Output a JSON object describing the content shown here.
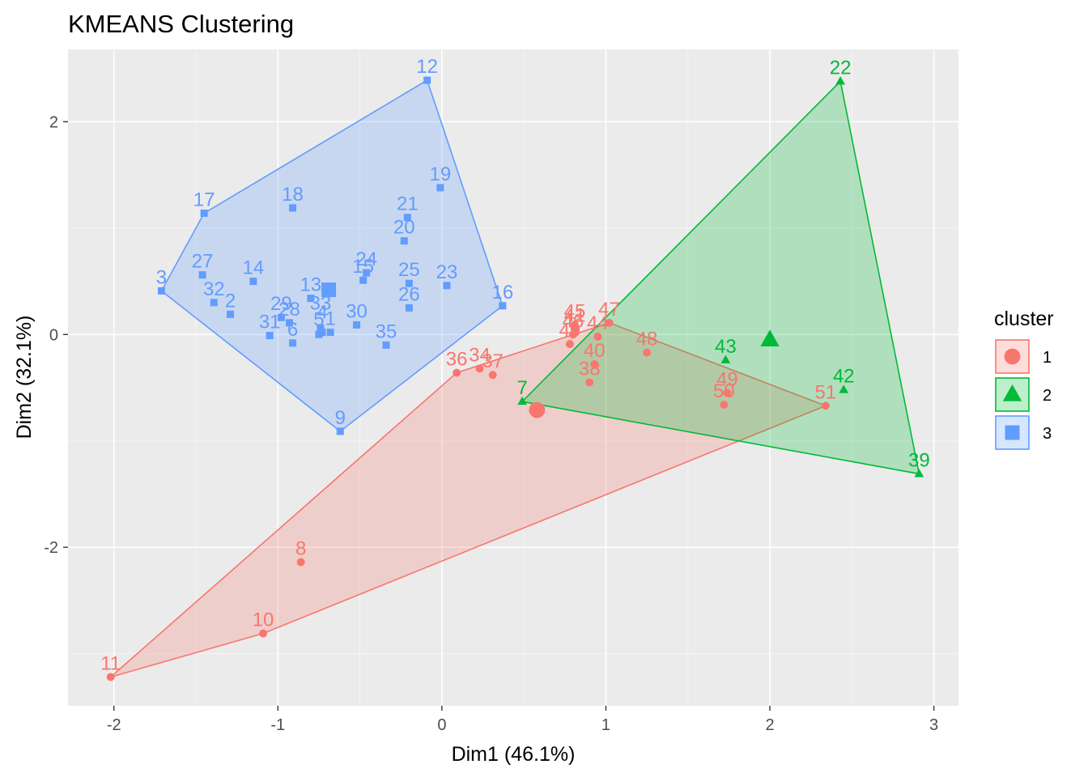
{
  "chart_data": {
    "type": "scatter",
    "title": "KMEANS Clustering",
    "xlabel": "Dim1 (46.1%)",
    "ylabel": "Dim2 (32.1%)",
    "xlim": [
      -2.28,
      3.15
    ],
    "ylim": [
      -3.49,
      2.68
    ],
    "x_ticks": [
      -2,
      -1,
      0,
      1,
      2,
      3
    ],
    "y_ticks": [
      -2,
      0,
      2
    ],
    "grid": true,
    "legend": {
      "title": "cluster",
      "placement": "right",
      "entries": [
        "1",
        "2",
        "3"
      ]
    },
    "colors": {
      "1": "#F8766D",
      "2": "#00BA38",
      "3": "#619CFF"
    },
    "centers": [
      {
        "cluster": "1",
        "x": 0.58,
        "y": -0.71
      },
      {
        "cluster": "2",
        "x": 2.0,
        "y": -0.05
      },
      {
        "cluster": "3",
        "x": -0.69,
        "y": 0.42
      }
    ],
    "series": [
      {
        "name": "1",
        "hull": [
          "11",
          "10",
          "51",
          "47",
          "36"
        ],
        "points": [
          {
            "label": "8",
            "x": -0.86,
            "y": -2.14
          },
          {
            "label": "10",
            "x": -1.09,
            "y": -2.81
          },
          {
            "label": "11",
            "x": -2.02,
            "y": -3.22
          },
          {
            "label": "36",
            "x": 0.09,
            "y": -0.36
          },
          {
            "label": "34",
            "x": 0.23,
            "y": -0.32
          },
          {
            "label": "37",
            "x": 0.31,
            "y": -0.38
          },
          {
            "label": "45",
            "x": 0.81,
            "y": 0.09
          },
          {
            "label": "41",
            "x": 0.81,
            "y": 0.05
          },
          {
            "label": "46",
            "x": 0.8,
            "y": 0.0
          },
          {
            "label": "44",
            "x": 0.95,
            "y": -0.02
          },
          {
            "label": "47",
            "x": 1.02,
            "y": 0.11
          },
          {
            "label": "49",
            "x": 0.78,
            "y": -0.09
          },
          {
            "label": "40",
            "x": 0.93,
            "y": -0.28
          },
          {
            "label": "38",
            "x": 0.9,
            "y": -0.45
          },
          {
            "label": "48",
            "x": 1.25,
            "y": -0.17
          },
          {
            "label": "49",
            "x": 1.74,
            "y": -0.55
          },
          {
            "label": "50",
            "x": 1.72,
            "y": -0.66
          },
          {
            "label": "51",
            "x": 2.34,
            "y": -0.67
          }
        ]
      },
      {
        "name": "2",
        "hull": [
          "22",
          "39",
          "7"
        ],
        "points": [
          {
            "label": "22",
            "x": 2.43,
            "y": 2.38
          },
          {
            "label": "43",
            "x": 1.73,
            "y": -0.24
          },
          {
            "label": "42",
            "x": 2.45,
            "y": -0.52
          },
          {
            "label": "39",
            "x": 2.91,
            "y": -1.31
          },
          {
            "label": "7",
            "x": 0.49,
            "y": -0.63
          }
        ]
      },
      {
        "name": "3",
        "hull": [
          "12",
          "16",
          "9",
          "3",
          "17"
        ],
        "points": [
          {
            "label": "12",
            "x": -0.09,
            "y": 2.39
          },
          {
            "label": "17",
            "x": -1.45,
            "y": 1.14
          },
          {
            "label": "18",
            "x": -0.91,
            "y": 1.19
          },
          {
            "label": "19",
            "x": -0.01,
            "y": 1.38
          },
          {
            "label": "21",
            "x": -0.21,
            "y": 1.1
          },
          {
            "label": "20",
            "x": -0.23,
            "y": 0.88
          },
          {
            "label": "3",
            "x": -1.71,
            "y": 0.41
          },
          {
            "label": "27",
            "x": -1.46,
            "y": 0.56
          },
          {
            "label": "14",
            "x": -1.15,
            "y": 0.5
          },
          {
            "label": "32",
            "x": -1.39,
            "y": 0.3
          },
          {
            "label": "2",
            "x": -1.29,
            "y": 0.19
          },
          {
            "label": "24",
            "x": -0.46,
            "y": 0.58
          },
          {
            "label": "15",
            "x": -0.48,
            "y": 0.51
          },
          {
            "label": "25",
            "x": -0.2,
            "y": 0.48
          },
          {
            "label": "26",
            "x": -0.2,
            "y": 0.25
          },
          {
            "label": "23",
            "x": 0.03,
            "y": 0.46
          },
          {
            "label": "16",
            "x": 0.37,
            "y": 0.27
          },
          {
            "label": "13",
            "x": -0.8,
            "y": 0.34
          },
          {
            "label": "29",
            "x": -0.98,
            "y": 0.16
          },
          {
            "label": "28",
            "x": -0.93,
            "y": 0.11
          },
          {
            "label": "31",
            "x": -1.05,
            "y": -0.01
          },
          {
            "label": "6",
            "x": -0.91,
            "y": -0.08
          },
          {
            "label": "33",
            "x": -0.74,
            "y": 0.06
          },
          {
            "label": "4",
            "x": -0.73,
            "y": 0.02
          },
          {
            "label": "5",
            "x": -0.75,
            "y": 0.0
          },
          {
            "label": "1",
            "x": -0.68,
            "y": 0.02
          },
          {
            "label": "30",
            "x": -0.52,
            "y": 0.09
          },
          {
            "label": "35",
            "x": -0.34,
            "y": -0.1
          },
          {
            "label": "9",
            "x": -0.62,
            "y": -0.91
          }
        ]
      }
    ]
  }
}
